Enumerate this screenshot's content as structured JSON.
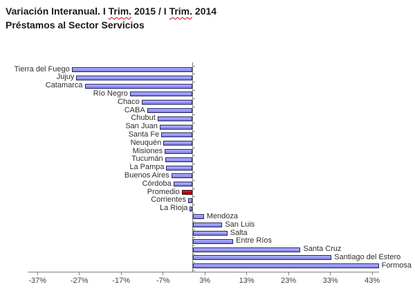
{
  "title": {
    "line1_segments": [
      {
        "text": "Variación Interanual. I "
      },
      {
        "text": "Trim.",
        "spellcheck": true
      },
      {
        "text": " 2015 / I "
      },
      {
        "text": "Trim.",
        "spellcheck": true
      },
      {
        "text": " 2014"
      }
    ],
    "line2": "Préstamos al Sector Servicios"
  },
  "chart_data": {
    "type": "bar",
    "orientation": "horizontal",
    "title": "Variación Interanual. I Trim. 2015 / I Trim. 2014",
    "subtitle": "Préstamos al Sector Servicios",
    "xlabel": "",
    "ylabel": "",
    "unit": "%",
    "categories": [
      "Tierra del Fuego",
      "Jujuy",
      "Catamarca",
      "Río Negro",
      "Chaco",
      "CABA",
      "Chubut",
      "San Juan",
      "Santa Fe",
      "Neuquén",
      "Misiones",
      "Tucumán",
      "La Pampa",
      "Buenos Aires",
      "Córdoba",
      "Promedio",
      "Corrientes",
      "La Rioja",
      "Mendoza",
      "San Luis",
      "Salta",
      "Entre Ríos",
      "Santa Cruz",
      "Santiago del Estero",
      "Formosa"
    ],
    "values": [
      -28.8,
      -27.7,
      -25.7,
      -14.9,
      -12.1,
      -10.8,
      -8.3,
      -7.8,
      -7.4,
      -6.9,
      -6.6,
      -6.5,
      -6.2,
      -5.0,
      -4.5,
      -2.5,
      -1.0,
      -0.6,
      2.6,
      7.0,
      8.2,
      9.6,
      25.7,
      33.1,
      44.4
    ],
    "average_category": "Promedio",
    "xticks": [
      -37,
      -27,
      -17,
      -7,
      3,
      13,
      23,
      33,
      43
    ],
    "xtick_labels": [
      "-37%",
      "-27%",
      "-17%",
      "-7%",
      "3%",
      "13%",
      "23%",
      "33%",
      "43%"
    ],
    "xlim": [
      -39.5,
      44.6
    ],
    "grid": false,
    "legend": "none",
    "labels": "category names at outside end of each bar",
    "bar_color": "#9999FF",
    "bar_border_color": "#26265e",
    "average_bar_color": "#CC0000",
    "average_bar_border_color": "#1a1a1a",
    "axis_color": "#808080",
    "text_color": "#2e2e2e"
  }
}
